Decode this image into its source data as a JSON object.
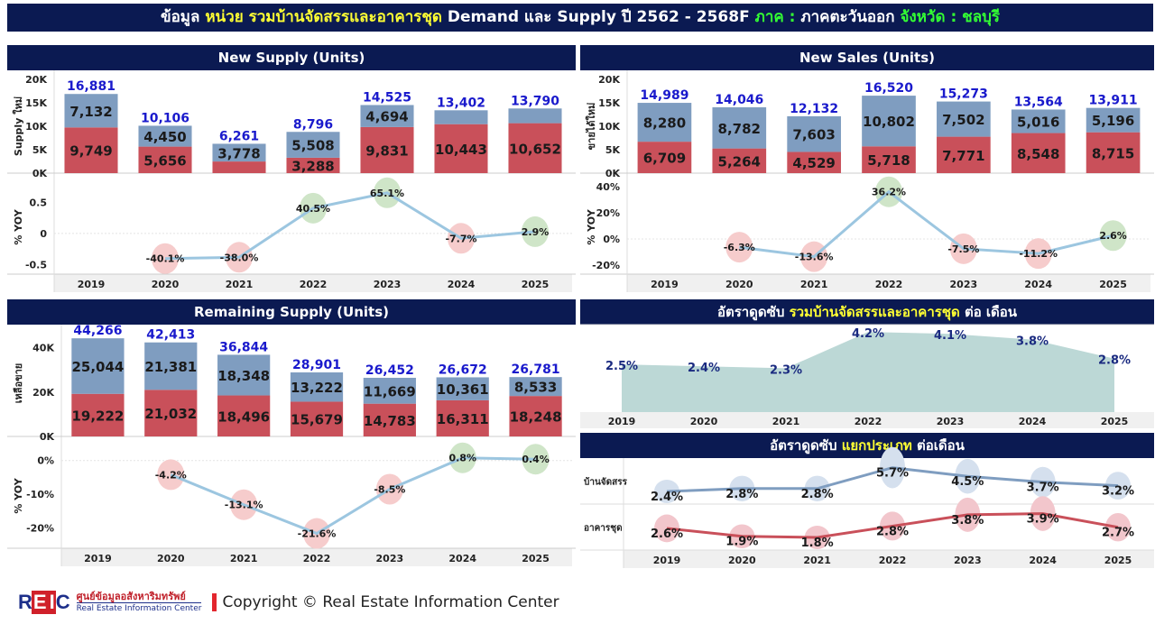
{
  "page": {
    "title_parts": [
      {
        "text": "ข้อมูล ",
        "color": "white"
      },
      {
        "text": "หน่วย ",
        "color": "yellow"
      },
      {
        "text": "รวมบ้านจัดสรรและอาคารชุด ",
        "color": "yellow"
      },
      {
        "text": "Demand และ Supply ปี 2562 - 2568F ",
        "color": "white"
      },
      {
        "text": "ภาค : ",
        "color": "green"
      },
      {
        "text": "ภาคตะวันออก ",
        "color": "white"
      },
      {
        "text": "จังหวัด : ชลบุรี",
        "color": "green"
      }
    ]
  },
  "colors": {
    "header_bg": "#0b1a52",
    "bar_red": "#c9505a",
    "bar_blue": "#7f9dc0",
    "total_label": "#1a1acc",
    "yoy_line": "#9cc6e0",
    "bubble_pos": "#cfe5c8",
    "bubble_neg": "#f6cccc",
    "area_fill": "#bcd8d6",
    "house_line": "#7f9dc0",
    "condo_line": "#c9505a"
  },
  "footer": {
    "logo": "REIC",
    "logo_thai": "ศูนย์ข้อมูลอสังหาริมทรัพย์",
    "logo_en": "Real Estate Information Center",
    "copyright": "Copyright © Real Estate Information Center"
  },
  "chart_data": [
    {
      "id": "new_supply",
      "type": "bar",
      "stacked": true,
      "title": "New Supply (Units)",
      "ylabel": "Supply ใหม่",
      "ylim": [
        0,
        20000
      ],
      "yticks": [
        "0K",
        "5K",
        "10K",
        "15K",
        "20K"
      ],
      "categories": [
        "2019",
        "2020",
        "2021",
        "2022",
        "2023",
        "2024",
        "2025"
      ],
      "series": [
        {
          "name": "bottom",
          "color": "red",
          "values": [
            9749,
            5656,
            2483,
            3288,
            9831,
            10443,
            10652
          ],
          "labels": [
            "9,749",
            "5,656",
            "",
            "3,288",
            "9,831",
            "10,443",
            "10,652"
          ]
        },
        {
          "name": "top",
          "color": "blue",
          "values": [
            7132,
            4450,
            3778,
            5508,
            4694,
            2959,
            3138
          ],
          "labels": [
            "7,132",
            "4,450",
            "3,778",
            "5,508",
            "4,694",
            "",
            ""
          ]
        }
      ],
      "totals": [
        "16,881",
        "10,106",
        "6,261",
        "8,796",
        "14,525",
        "13,402",
        "13,790"
      ]
    },
    {
      "id": "new_supply_yoy",
      "type": "line",
      "ylabel": "% YOY",
      "ylim": [
        -0.65,
        0.85
      ],
      "yticks": [
        {
          "v": 0.5,
          "t": "0.5"
        },
        {
          "v": 0,
          "t": "0"
        },
        {
          "v": -0.5,
          "t": "-0.5"
        }
      ],
      "categories": [
        "2019",
        "2020",
        "2021",
        "2022",
        "2023",
        "2024",
        "2025"
      ],
      "values": [
        null,
        -0.401,
        -0.38,
        0.405,
        0.651,
        -0.077,
        0.029
      ],
      "labels": [
        "",
        "-40.1%",
        "-38.0%",
        "40.5%",
        "65.1%",
        "-7.7%",
        "2.9%"
      ]
    },
    {
      "id": "new_sales",
      "type": "bar",
      "stacked": true,
      "title": "New Sales (Units)",
      "ylabel": "ขายได้ใหม่",
      "ylim": [
        0,
        20000
      ],
      "yticks": [
        "0K",
        "5K",
        "10K",
        "15K",
        "20K"
      ],
      "categories": [
        "2019",
        "2020",
        "2021",
        "2022",
        "2023",
        "2024",
        "2025"
      ],
      "series": [
        {
          "name": "bottom",
          "color": "red",
          "values": [
            6709,
            5264,
            4529,
            5718,
            7771,
            8548,
            8715
          ],
          "labels": [
            "6,709",
            "5,264",
            "4,529",
            "5,718",
            "7,771",
            "8,548",
            "8,715"
          ]
        },
        {
          "name": "top",
          "color": "blue",
          "values": [
            8280,
            8782,
            7603,
            10802,
            7502,
            5016,
            5196
          ],
          "labels": [
            "8,280",
            "8,782",
            "7,603",
            "10,802",
            "7,502",
            "5,016",
            "5,196"
          ]
        }
      ],
      "totals": [
        "14,989",
        "14,046",
        "12,132",
        "16,520",
        "15,273",
        "13,564",
        "13,911"
      ]
    },
    {
      "id": "new_sales_yoy",
      "type": "line",
      "ylabel": "% YOY",
      "ylim": [
        -0.27,
        0.45
      ],
      "yticks": [
        {
          "v": 0.4,
          "t": "40%"
        },
        {
          "v": 0.2,
          "t": "20%"
        },
        {
          "v": 0,
          "t": "0%"
        },
        {
          "v": -0.2,
          "t": "-20%"
        }
      ],
      "categories": [
        "2019",
        "2020",
        "2021",
        "2022",
        "2023",
        "2024",
        "2025"
      ],
      "values": [
        null,
        -0.063,
        -0.136,
        0.362,
        -0.075,
        -0.112,
        0.026
      ],
      "labels": [
        "",
        "-6.3%",
        "-13.6%",
        "36.2%",
        "-7.5%",
        "-11.2%",
        "2.6%"
      ]
    },
    {
      "id": "remaining_supply",
      "type": "bar",
      "stacked": true,
      "title": "Remaining Supply (Units)",
      "ylabel": "เหลือขาย",
      "ylim": [
        0,
        48000
      ],
      "yticks": [
        {
          "v": 0,
          "t": "0K"
        },
        {
          "v": 20000,
          "t": "20K"
        },
        {
          "v": 40000,
          "t": "40K"
        }
      ],
      "categories": [
        "2019",
        "2020",
        "2021",
        "2022",
        "2023",
        "2024",
        "2025"
      ],
      "series": [
        {
          "name": "bottom",
          "color": "red",
          "values": [
            19222,
            21032,
            18496,
            15679,
            14783,
            16311,
            18248
          ],
          "labels": [
            "19,222",
            "21,032",
            "18,496",
            "15,679",
            "14,783",
            "16,311",
            "18,248"
          ]
        },
        {
          "name": "top",
          "color": "blue",
          "values": [
            25044,
            21381,
            18348,
            13222,
            11669,
            10361,
            8533
          ],
          "labels": [
            "25,044",
            "21,381",
            "18,348",
            "13,222",
            "11,669",
            "10,361",
            "8,533"
          ]
        }
      ],
      "totals": [
        "44,266",
        "42,413",
        "36,844",
        "28,901",
        "26,452",
        "26,672",
        "26,781"
      ]
    },
    {
      "id": "remaining_supply_yoy",
      "type": "line",
      "ylabel": "% YOY",
      "ylim": [
        -0.26,
        0.05
      ],
      "yticks": [
        {
          "v": 0,
          "t": "0%"
        },
        {
          "v": -0.1,
          "t": "-10%"
        },
        {
          "v": -0.2,
          "t": "-20%"
        }
      ],
      "categories": [
        "2019",
        "2020",
        "2021",
        "2022",
        "2023",
        "2024",
        "2025"
      ],
      "values": [
        null,
        -0.042,
        -0.131,
        -0.216,
        -0.085,
        0.008,
        0.004
      ],
      "labels": [
        "",
        "-4.2%",
        "-13.1%",
        "-21.6%",
        "-8.5%",
        "0.8%",
        "0.4%"
      ]
    },
    {
      "id": "absorption_total",
      "type": "area",
      "title_parts": [
        {
          "text": "อัตราดูดซับ ",
          "color": "white"
        },
        {
          "text": "รวมบ้านจัดสรรและอาคารชุด",
          "color": "yellow"
        },
        {
          "text": " ต่อ เดือน",
          "color": "white"
        }
      ],
      "ylim": [
        0,
        4.3
      ],
      "categories": [
        "2019",
        "2020",
        "2021",
        "2022",
        "2023",
        "2024",
        "2025"
      ],
      "values": [
        2.5,
        2.4,
        2.3,
        4.2,
        4.1,
        3.8,
        2.8
      ],
      "labels": [
        "2.5%",
        "2.4%",
        "2.3%",
        "4.2%",
        "4.1%",
        "3.8%",
        "2.8%"
      ]
    },
    {
      "id": "absorption_by_type",
      "type": "line",
      "title_parts": [
        {
          "text": "อัตราดูดซับ ",
          "color": "white"
        },
        {
          "text": "แยกประเภท",
          "color": "yellow"
        },
        {
          "text": " ต่อเดือน",
          "color": "white"
        }
      ],
      "categories": [
        "2019",
        "2020",
        "2021",
        "2022",
        "2023",
        "2024",
        "2025"
      ],
      "series": [
        {
          "name": "บ้านจัดสรร",
          "values": [
            2.4,
            2.8,
            2.8,
            5.7,
            4.5,
            3.7,
            3.2
          ],
          "labels": [
            "2.4%",
            "2.8%",
            "2.8%",
            "5.7%",
            "4.5%",
            "3.7%",
            "3.2%"
          ]
        },
        {
          "name": "อาคารชุด",
          "values": [
            2.6,
            1.9,
            1.8,
            2.8,
            3.8,
            3.9,
            2.7
          ],
          "labels": [
            "2.6%",
            "1.9%",
            "1.8%",
            "2.8%",
            "3.8%",
            "3.9%",
            "2.7%"
          ]
        }
      ]
    }
  ]
}
